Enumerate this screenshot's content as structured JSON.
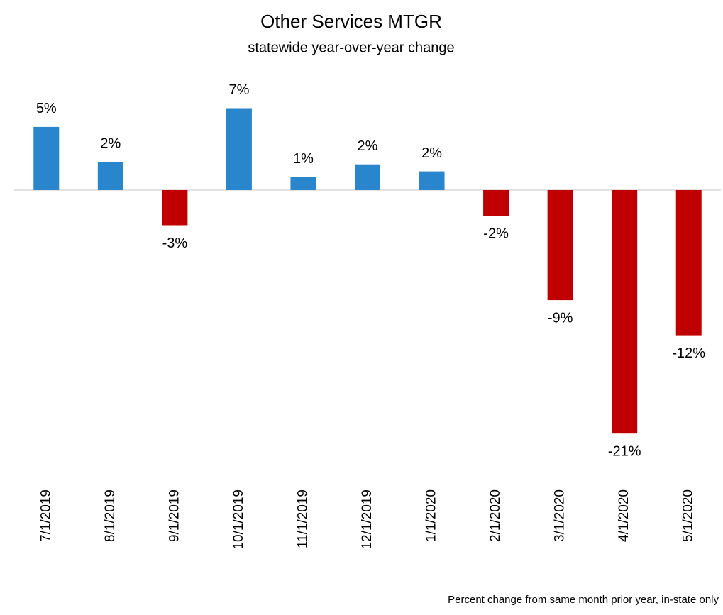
{
  "chart_data": {
    "type": "bar",
    "title": "Other Services MTGR",
    "subtitle": "statewide year-over-year change",
    "note": "Percent change from same month prior year, in-state only",
    "categories": [
      "7/1/2019",
      "8/1/2019",
      "9/1/2019",
      "10/1/2019",
      "11/1/2019",
      "12/1/2019",
      "1/1/2020",
      "2/1/2020",
      "3/1/2020",
      "4/1/2020",
      "5/1/2020"
    ],
    "values": [
      5.4,
      2.4,
      -3.0,
      7.0,
      1.1,
      2.2,
      1.6,
      -2.2,
      -9.4,
      -20.8,
      -12.4
    ],
    "value_labels": [
      "5%",
      "2%",
      "-3%",
      "7%",
      "1%",
      "2%",
      "2%",
      "-2%",
      "-9%",
      "-21%",
      "-12%"
    ],
    "colors": [
      "#2986cc",
      "#2986cc",
      "#c00000",
      "#2986cc",
      "#2986cc",
      "#2986cc",
      "#2986cc",
      "#c00000",
      "#c00000",
      "#c00000",
      "#c00000"
    ],
    "ylim": [
      -22,
      8
    ]
  }
}
